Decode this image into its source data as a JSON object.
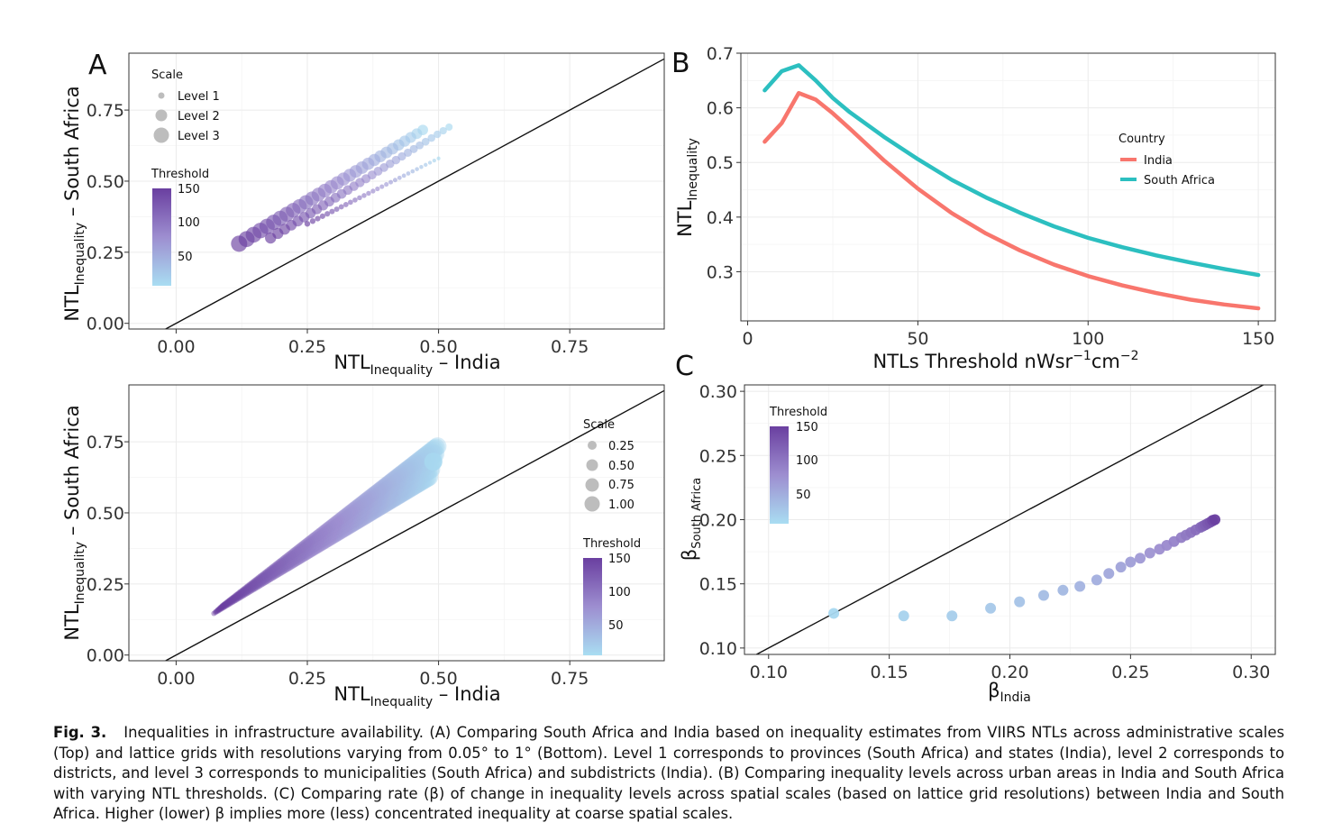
{
  "caption": {
    "fig_label": "Fig. 3.",
    "text": "Inequalities in infrastructure availability. (A) Comparing South Africa and India based on inequality estimates from VIIRS NTLs across administrative scales (Top) and lattice grids with resolutions varying from 0.05° to 1° (Bottom). Level 1 corresponds to provinces (South Africa) and states (India), level 2 corresponds to districts, and level 3 corresponds to municipalities (South Africa) and subdistricts (India). (B) Comparing inequality levels across urban areas in India and South Africa with varying NTL thresholds. (C) Comparing rate (β) of change in inequality levels across spatial scales (based on lattice grid resolutions) between India and South Africa. Higher (lower) β implies more (less) concentrated inequality at coarse spatial scales."
  },
  "colors": {
    "india": "#F8766D",
    "south_africa": "#2CBFC0",
    "threshold_high": "#6A3FA0",
    "threshold_low": "#A9DDF2",
    "grid": "#EBEBEB",
    "panel_border": "#333333"
  },
  "chart_data": [
    {
      "id": "A_top",
      "type": "scatter",
      "panel_label": "A",
      "xlabel_main": "NTL",
      "xlabel_sub": "Inequality",
      "xlabel_suffix": " – India",
      "ylabel_main": "NTL",
      "ylabel_sub": "Inequality",
      "ylabel_suffix": " – South Africa",
      "xlim": [
        -0.09,
        0.93
      ],
      "ylim": [
        -0.02,
        0.95
      ],
      "xticks": [
        "0.00",
        "0.25",
        "0.50",
        "0.75"
      ],
      "yticks": [
        "0.00",
        "0.25",
        "0.50",
        "0.75"
      ],
      "identity_line": true,
      "legend_scale_title": "Scale",
      "legend_scale_items": [
        "Level 1",
        "Level 2",
        "Level 3"
      ],
      "legend_threshold_title": "Threshold",
      "legend_threshold_ticks": [
        "150",
        "100",
        "50"
      ],
      "series": [
        {
          "level": 3,
          "x_start": 0.12,
          "y_start": 0.28,
          "x_end": 0.47,
          "y_end": 0.68,
          "threshold_start": 150,
          "threshold_end": 5
        },
        {
          "level": 2,
          "x_start": 0.18,
          "y_start": 0.3,
          "x_end": 0.52,
          "y_end": 0.69,
          "threshold_start": 150,
          "threshold_end": 5
        },
        {
          "level": 1,
          "x_start": 0.25,
          "y_start": 0.35,
          "x_end": 0.5,
          "y_end": 0.58,
          "threshold_start": 150,
          "threshold_end": 5
        }
      ]
    },
    {
      "id": "A_bottom",
      "type": "scatter",
      "xlabel_main": "NTL",
      "xlabel_sub": "Inequality",
      "xlabel_suffix": " – India",
      "ylabel_main": "NTL",
      "ylabel_sub": "Inequality",
      "ylabel_suffix": " – South Africa",
      "xlim": [
        -0.09,
        0.93
      ],
      "ylim": [
        -0.02,
        0.95
      ],
      "xticks": [
        "0.00",
        "0.25",
        "0.50",
        "0.75"
      ],
      "yticks": [
        "0.00",
        "0.25",
        "0.50",
        "0.75"
      ],
      "identity_line": true,
      "legend_scale_title": "Scale",
      "legend_scale_items": [
        "0.25",
        "0.50",
        "0.75",
        "1.00"
      ],
      "legend_threshold_title": "Threshold",
      "legend_threshold_ticks": [
        "150",
        "100",
        "50"
      ],
      "band": {
        "x_start": 0.08,
        "y_start": 0.16,
        "x_end": 0.49,
        "y_end": 0.68,
        "width_start": 0.015,
        "width_end": 0.06
      }
    },
    {
      "id": "B",
      "type": "line",
      "panel_label": "B",
      "xlabel": "NTLs Threshold nWsr",
      "xlabel_sup1": "−1",
      "xlabel_mid": "cm",
      "xlabel_sup2": "−2",
      "ylabel_main": "NTL",
      "ylabel_sub": "Inequality",
      "xlim": [
        -2,
        155
      ],
      "ylim": [
        0.21,
        0.7
      ],
      "xticks": [
        "0",
        "50",
        "100",
        "150"
      ],
      "yticks": [
        "0.3",
        "0.4",
        "0.5",
        "0.6",
        "0.7"
      ],
      "legend_title": "Country",
      "x": [
        5,
        10,
        15,
        20,
        25,
        30,
        40,
        50,
        60,
        70,
        80,
        90,
        100,
        110,
        120,
        130,
        140,
        150
      ],
      "series": [
        {
          "name": "India",
          "values": [
            0.538,
            0.572,
            0.627,
            0.615,
            0.59,
            0.562,
            0.504,
            0.452,
            0.407,
            0.37,
            0.339,
            0.313,
            0.292,
            0.275,
            0.261,
            0.249,
            0.24,
            0.233
          ]
        },
        {
          "name": "South Africa",
          "values": [
            0.632,
            0.667,
            0.678,
            0.65,
            0.618,
            0.592,
            0.547,
            0.506,
            0.468,
            0.436,
            0.408,
            0.383,
            0.362,
            0.345,
            0.33,
            0.317,
            0.305,
            0.294
          ]
        }
      ]
    },
    {
      "id": "C",
      "type": "scatter",
      "panel_label": "C",
      "xlabel_main": "β",
      "xlabel_sub": "India",
      "ylabel_main": "β",
      "ylabel_sub": "South Africa",
      "xlim": [
        0.09,
        0.31
      ],
      "ylim": [
        0.095,
        0.305
      ],
      "xticks": [
        "0.10",
        "0.15",
        "0.20",
        "0.25",
        "0.30"
      ],
      "yticks": [
        "0.10",
        "0.15",
        "0.20",
        "0.25",
        "0.30"
      ],
      "identity_line": true,
      "legend_threshold_title": "Threshold",
      "legend_threshold_ticks": [
        "150",
        "100",
        "50"
      ],
      "points": [
        {
          "x": 0.127,
          "y": 0.127,
          "t": 5
        },
        {
          "x": 0.156,
          "y": 0.125,
          "t": 10
        },
        {
          "x": 0.176,
          "y": 0.125,
          "t": 15
        },
        {
          "x": 0.192,
          "y": 0.131,
          "t": 20
        },
        {
          "x": 0.204,
          "y": 0.136,
          "t": 25
        },
        {
          "x": 0.214,
          "y": 0.141,
          "t": 30
        },
        {
          "x": 0.222,
          "y": 0.145,
          "t": 35
        },
        {
          "x": 0.229,
          "y": 0.148,
          "t": 40
        },
        {
          "x": 0.236,
          "y": 0.153,
          "t": 45
        },
        {
          "x": 0.241,
          "y": 0.158,
          "t": 50
        },
        {
          "x": 0.246,
          "y": 0.163,
          "t": 55
        },
        {
          "x": 0.25,
          "y": 0.167,
          "t": 60
        },
        {
          "x": 0.254,
          "y": 0.17,
          "t": 65
        },
        {
          "x": 0.258,
          "y": 0.174,
          "t": 70
        },
        {
          "x": 0.262,
          "y": 0.177,
          "t": 75
        },
        {
          "x": 0.265,
          "y": 0.18,
          "t": 80
        },
        {
          "x": 0.268,
          "y": 0.183,
          "t": 85
        },
        {
          "x": 0.271,
          "y": 0.186,
          "t": 90
        },
        {
          "x": 0.273,
          "y": 0.188,
          "t": 95
        },
        {
          "x": 0.275,
          "y": 0.19,
          "t": 100
        },
        {
          "x": 0.277,
          "y": 0.192,
          "t": 105
        },
        {
          "x": 0.279,
          "y": 0.194,
          "t": 110
        },
        {
          "x": 0.28,
          "y": 0.195,
          "t": 115
        },
        {
          "x": 0.281,
          "y": 0.196,
          "t": 120
        },
        {
          "x": 0.282,
          "y": 0.197,
          "t": 125
        },
        {
          "x": 0.283,
          "y": 0.198,
          "t": 130
        },
        {
          "x": 0.284,
          "y": 0.199,
          "t": 135
        },
        {
          "x": 0.284,
          "y": 0.1995,
          "t": 140
        },
        {
          "x": 0.285,
          "y": 0.2,
          "t": 150
        }
      ]
    }
  ]
}
